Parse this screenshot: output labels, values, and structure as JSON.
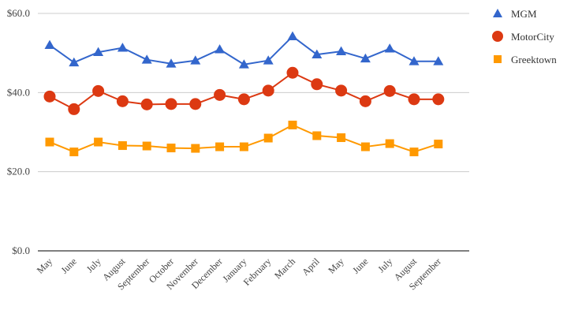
{
  "chart_data": {
    "type": "line",
    "title": "",
    "xlabel": "",
    "ylabel": "",
    "categories": [
      "May",
      "June",
      "July",
      "August",
      "September",
      "October",
      "November",
      "December",
      "January",
      "February",
      "March",
      "April",
      "May",
      "June",
      "July",
      "August",
      "September"
    ],
    "ylim": [
      0,
      60
    ],
    "yticks": [
      0,
      20,
      40,
      60
    ],
    "ytick_labels": [
      "$0.0",
      "$20.0",
      "$40.0",
      "$60.0"
    ],
    "grid": true,
    "legend_position": "right",
    "series": [
      {
        "name": "MGM",
        "color": "#3366cc",
        "marker": "triangle",
        "values": [
          52.0,
          47.6,
          50.2,
          51.3,
          48.3,
          47.3,
          48.1,
          50.9,
          47.1,
          48.1,
          54.2,
          49.6,
          50.4,
          48.6,
          51.1,
          47.9,
          47.9
        ]
      },
      {
        "name": "MotorCity",
        "color": "#dc3912",
        "marker": "circle",
        "values": [
          39.0,
          35.8,
          40.4,
          37.8,
          37.0,
          37.1,
          37.1,
          39.4,
          38.3,
          40.5,
          45.0,
          42.1,
          40.5,
          37.8,
          40.4,
          38.3,
          38.3
        ]
      },
      {
        "name": "Greektown",
        "color": "#ff9900",
        "marker": "square",
        "values": [
          27.5,
          25.0,
          27.5,
          26.6,
          26.5,
          26.0,
          25.9,
          26.3,
          26.3,
          28.5,
          31.8,
          29.1,
          28.6,
          26.3,
          27.1,
          25.0,
          27.0
        ]
      }
    ]
  }
}
